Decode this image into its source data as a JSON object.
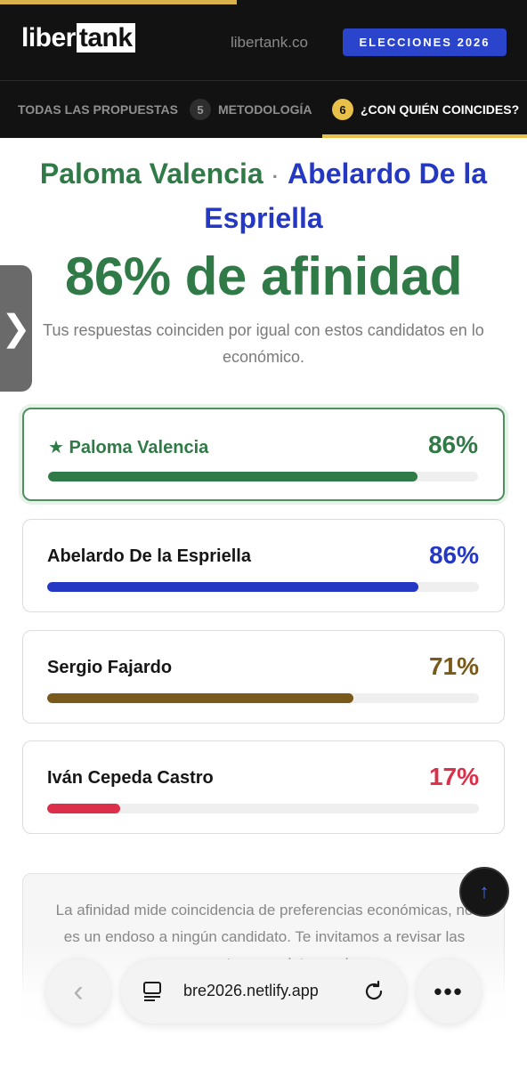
{
  "header": {
    "logo_left": "liber",
    "logo_right": "tank",
    "site": "libertank.co",
    "button": "ELECCIONES 2026"
  },
  "tabs": [
    {
      "num": "",
      "label": "TODAS LAS PROPUESTAS",
      "active": false
    },
    {
      "num": "5",
      "label": "METODOLOGÍA",
      "active": false
    },
    {
      "num": "6",
      "label": "¿CON QUIÉN COINCIDES?",
      "active": true
    }
  ],
  "hero": {
    "name_a": "Paloma Valencia",
    "separator": "·",
    "name_b": "Abelardo De la Espriella",
    "affinity": "86% de afinidad",
    "subtitle": "Tus respuestas coinciden por igual con estos candidatos en lo económico."
  },
  "side_handle": {
    "glyph": "❯"
  },
  "candidates": [
    {
      "name": "★ Paloma Valencia",
      "pct_label": "86%",
      "value": 86,
      "color": "#2f7a46",
      "name_color": "#2f7a46",
      "winner": true
    },
    {
      "name": "Abelardo De la Espriella",
      "pct_label": "86%",
      "value": 86,
      "color": "#2438c4",
      "name_color": "#161616",
      "winner": false
    },
    {
      "name": "Sergio Fajardo",
      "pct_label": "71%",
      "value": 71,
      "color": "#7a5a1a",
      "name_color": "#161616",
      "winner": false
    },
    {
      "name": "Iván Cepeda Castro",
      "pct_label": "17%",
      "value": 17,
      "color": "#dc2f4a",
      "name_color": "#161616",
      "winner": false
    }
  ],
  "note": {
    "text": "La afinidad mide coincidencia de preferencias económicas, no es un endoso a ningún candidato. Te invitamos a revisar las propuestas completas en la"
  },
  "browser": {
    "back_glyph": "‹",
    "url": "bre2026.netlify.app",
    "more_glyph": "•••"
  },
  "fab": {
    "glyph": "↑"
  }
}
